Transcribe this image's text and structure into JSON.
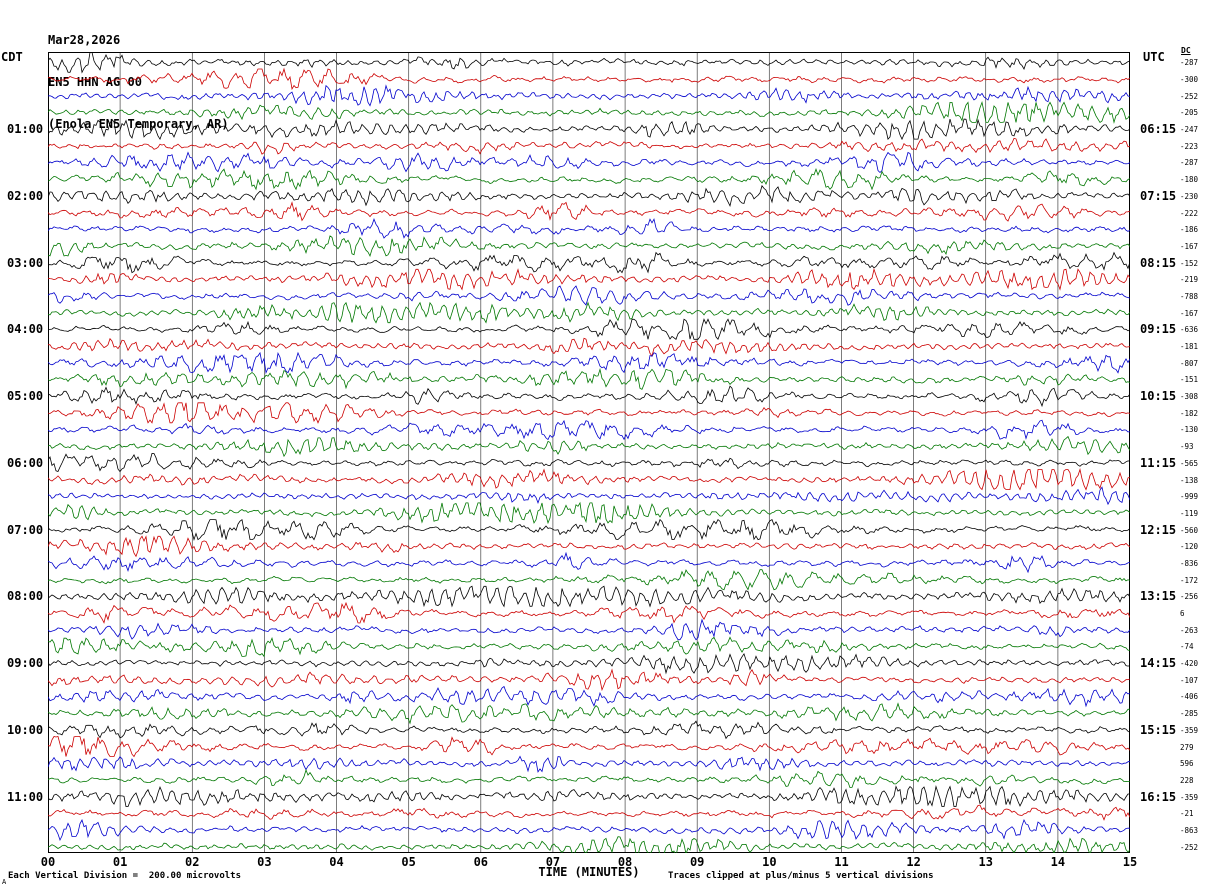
{
  "header": {
    "date": "Mar28,2026",
    "channel": "EN5 HHN AG 00",
    "station_desc": "(Enola EN5 Temporary, AR)"
  },
  "axis": {
    "left_tz": "CDT",
    "right_tz": "UTC",
    "dc_label": "DC",
    "x_title": "TIME (MINUTES)"
  },
  "footer": {
    "scale": "Each Vertical Division =  200.00 microvolts",
    "clip": "Traces clipped at plus/minus 5 vertical divisions",
    "corner": "A"
  },
  "chart_data": {
    "type": "line",
    "subtype": "helicorder-seismogram",
    "title": "EN5 HHN AG 00 — Mar28,2026 (Enola EN5 Temporary, AR)",
    "x_axis_title": "TIME (MINUTES)",
    "x_range_minutes": [
      0,
      15
    ],
    "minute_ticks": [
      "00",
      "01",
      "02",
      "03",
      "04",
      "05",
      "06",
      "07",
      "08",
      "09",
      "10",
      "11",
      "12",
      "13",
      "14",
      "15"
    ],
    "rows": 48,
    "traces_per_hour": 4,
    "row_duration_minutes": 15,
    "trace_colors": [
      "#000000",
      "#cc0000",
      "#0000cc",
      "#007700"
    ],
    "left_tz": "CDT",
    "right_tz": "UTC",
    "left_hour_labels": [
      "01:00",
      "02:00",
      "03:00",
      "04:00",
      "05:00",
      "06:00",
      "07:00",
      "08:00",
      "09:00",
      "10:00",
      "11:00"
    ],
    "right_hour_labels": [
      "06:15",
      "07:15",
      "08:15",
      "09:15",
      "10:15",
      "11:15",
      "12:15",
      "13:15",
      "14:15",
      "15:15",
      "16:15"
    ],
    "dc_values": [
      -287,
      -300,
      -252,
      -205,
      -247,
      -223,
      -287,
      -180,
      -230,
      -222,
      -186,
      -167,
      -152,
      -219,
      -788,
      -167,
      -636,
      -181,
      -807,
      -151,
      -308,
      -182,
      -130,
      -93,
      -565,
      -138,
      -999,
      -119,
      -560,
      -120,
      -836,
      -172,
      -256,
      6,
      -263,
      -74,
      -420,
      -107,
      -406,
      -285,
      -359,
      279,
      596,
      228,
      -359,
      -21,
      -863,
      -252
    ],
    "vertical_division_microvolts": 200.0,
    "clip_divisions": 5,
    "grid": "vertical minute gridlines",
    "legend": "none"
  }
}
